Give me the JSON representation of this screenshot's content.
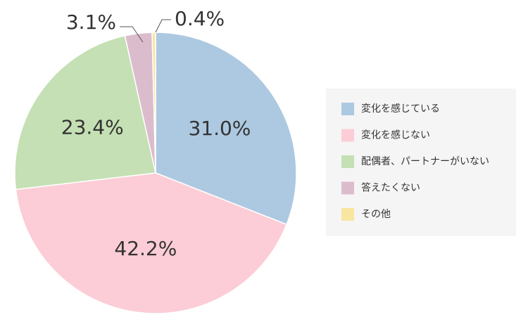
{
  "chart_data": {
    "type": "pie",
    "categories": [
      "変化を感じている",
      "変化を感じない",
      "配偶者、パートナーがいない",
      "答えたくない",
      "その他"
    ],
    "values": [
      31.0,
      42.2,
      23.4,
      3.1,
      0.4
    ],
    "value_labels": [
      "31.0%",
      "42.2%",
      "23.4%",
      "3.1%",
      "0.4%"
    ],
    "colors": [
      "#adc9e1",
      "#fccdd6",
      "#c5e0b4",
      "#dbbccc",
      "#f8e6a0"
    ],
    "legend": "right"
  }
}
